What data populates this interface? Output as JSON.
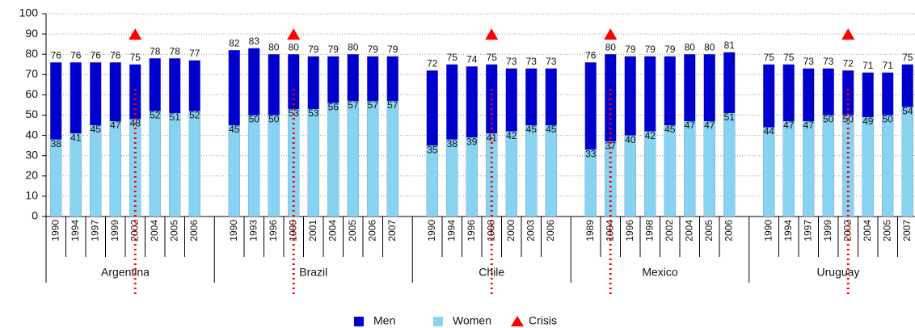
{
  "chart_data": {
    "type": "bar",
    "ylim": [
      0,
      100
    ],
    "yticks": [
      0,
      10,
      20,
      30,
      40,
      50,
      60,
      70,
      80,
      90,
      100
    ],
    "grid": true,
    "legend": "bottom",
    "series": [
      {
        "name": "Men",
        "color": "#0000cc"
      },
      {
        "name": "Women",
        "color": "#87d3f0"
      }
    ],
    "crisis": {
      "name": "Crisis",
      "color": "#ff0000",
      "value": 90
    },
    "groups": [
      {
        "name": "Argentina",
        "categories": [
          "1990",
          "1994",
          "1997",
          "1999",
          "2002",
          "2004",
          "2005",
          "2006"
        ],
        "crisis_category": "2002",
        "series": [
          {
            "values": [
              76,
              76,
              76,
              76,
              75,
              78,
              78,
              77
            ]
          },
          {
            "values": [
              38,
              41,
              45,
              47,
              48,
              52,
              51,
              52
            ]
          }
        ]
      },
      {
        "name": "Brazil",
        "categories": [
          "1990",
          "1993",
          "1996",
          "1999",
          "2001",
          "2004",
          "2005",
          "2006",
          "2007"
        ],
        "crisis_category": "1999",
        "series": [
          {
            "values": [
              82,
              83,
              80,
              80,
              79,
              79,
              80,
              79,
              79
            ]
          },
          {
            "values": [
              45,
              50,
              50,
              53,
              53,
              56,
              57,
              57,
              57
            ]
          }
        ]
      },
      {
        "name": "Chile",
        "categories": [
          "1990",
          "1994",
          "1996",
          "1998",
          "2000",
          "2003",
          "2006"
        ],
        "crisis_category": "1998",
        "series": [
          {
            "values": [
              72,
              75,
              74,
              75,
              73,
              73,
              73
            ]
          },
          {
            "values": [
              35,
              38,
              39,
              41,
              42,
              45,
              45
            ]
          }
        ]
      },
      {
        "name": "Mexico",
        "categories": [
          "1989",
          "1994",
          "1996",
          "1998",
          "2002",
          "2004",
          "2005",
          "2006"
        ],
        "crisis_category": "1994",
        "series": [
          {
            "values": [
              76,
              80,
              79,
              79,
              79,
              80,
              80,
              81
            ]
          },
          {
            "values": [
              33,
              37,
              40,
              42,
              45,
              47,
              47,
              51
            ]
          }
        ]
      },
      {
        "name": "Uruguay",
        "categories": [
          "1990",
          "1994",
          "1997",
          "1999",
          "2002",
          "2004",
          "2005",
          "2007"
        ],
        "crisis_category": "2002",
        "series": [
          {
            "values": [
              75,
              75,
              73,
              73,
              72,
              71,
              71,
              75
            ]
          },
          {
            "values": [
              44,
              47,
              47,
              50,
              50,
              49,
              50,
              54
            ]
          }
        ]
      }
    ]
  }
}
